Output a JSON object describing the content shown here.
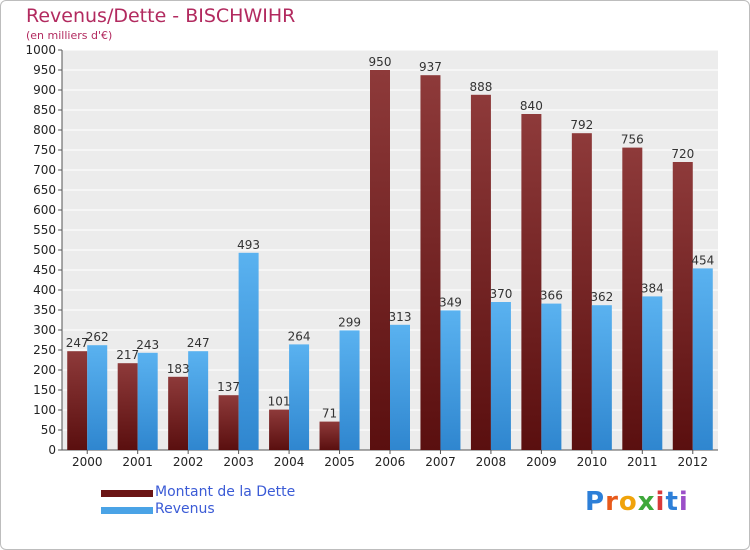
{
  "chart_data": {
    "type": "bar",
    "title": "Revenus/Dette - BISCHWIHR",
    "subtitle": "(en milliers d'€)",
    "categories": [
      "2000",
      "2001",
      "2002",
      "2003",
      "2004",
      "2005",
      "2006",
      "2007",
      "2008",
      "2009",
      "2010",
      "2011",
      "2012"
    ],
    "series": [
      {
        "name": "Montant de la Dette",
        "color": "#7a2323",
        "values": [
          247,
          217,
          183,
          137,
          101,
          71,
          950,
          937,
          888,
          840,
          792,
          756,
          720
        ]
      },
      {
        "name": "Revenus",
        "color": "#4aa3e6",
        "values": [
          262,
          243,
          247,
          493,
          264,
          299,
          313,
          349,
          370,
          366,
          362,
          384,
          454
        ]
      }
    ],
    "ylim": [
      0,
      1000
    ],
    "yticks": [
      0,
      50,
      100,
      150,
      200,
      250,
      300,
      350,
      400,
      450,
      500,
      550,
      600,
      650,
      700,
      750,
      800,
      850,
      900,
      950,
      1000
    ],
    "grid": true,
    "legend_position": "bottom-left"
  },
  "logo": {
    "letters": [
      "P",
      "r",
      "o",
      "x",
      "i",
      "t",
      "i"
    ],
    "colors": [
      "#2d7fd8",
      "#e85a1b",
      "#f0a30a",
      "#3ea83a",
      "#d93a3a",
      "#2d7fd8",
      "#9b4fc8"
    ]
  }
}
